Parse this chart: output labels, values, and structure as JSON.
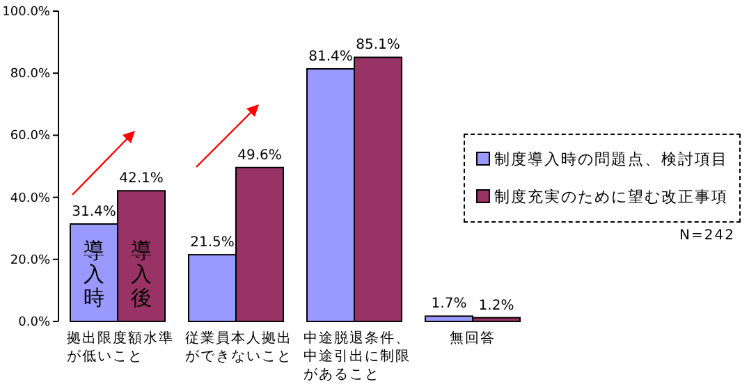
{
  "chart_data": {
    "type": "bar",
    "categories": [
      "拠出限度額水準が低いこと",
      "従業員本人拠出ができないこと",
      "中途脱退条件、中途引出に制限があること",
      "無回答"
    ],
    "series": [
      {
        "name": "制度導入時の問題点、検討項目",
        "color": "#9999ff",
        "values": [
          31.4,
          21.5,
          81.4,
          1.7
        ]
      },
      {
        "name": "制度充実のために望む改正事項",
        "color": "#993366",
        "values": [
          42.1,
          49.6,
          85.1,
          1.2
        ]
      }
    ],
    "ylim": [
      0,
      100
    ],
    "yticks": [
      {
        "value": 0,
        "label": "0.0%"
      },
      {
        "value": 20,
        "label": "20.0%"
      },
      {
        "value": 40,
        "label": "40.0%"
      },
      {
        "value": 60,
        "label": "60.0%"
      },
      {
        "value": 80,
        "label": "80.0%"
      },
      {
        "value": 100,
        "label": "100.0%"
      }
    ],
    "value_labels": [
      [
        "31.4%",
        "21.5%",
        "81.4%",
        "1.7%"
      ],
      [
        "42.1%",
        "49.6%",
        "85.1%",
        "1.2%"
      ]
    ],
    "legend": "right",
    "grid": false,
    "annotations": [
      {
        "text": "導入時",
        "x": "拠出限度額水準が低いこと",
        "y": 15
      },
      {
        "text": "導入後",
        "x": "拠出限度額水準が低いこと",
        "y": 15
      },
      "N=242"
    ]
  }
}
